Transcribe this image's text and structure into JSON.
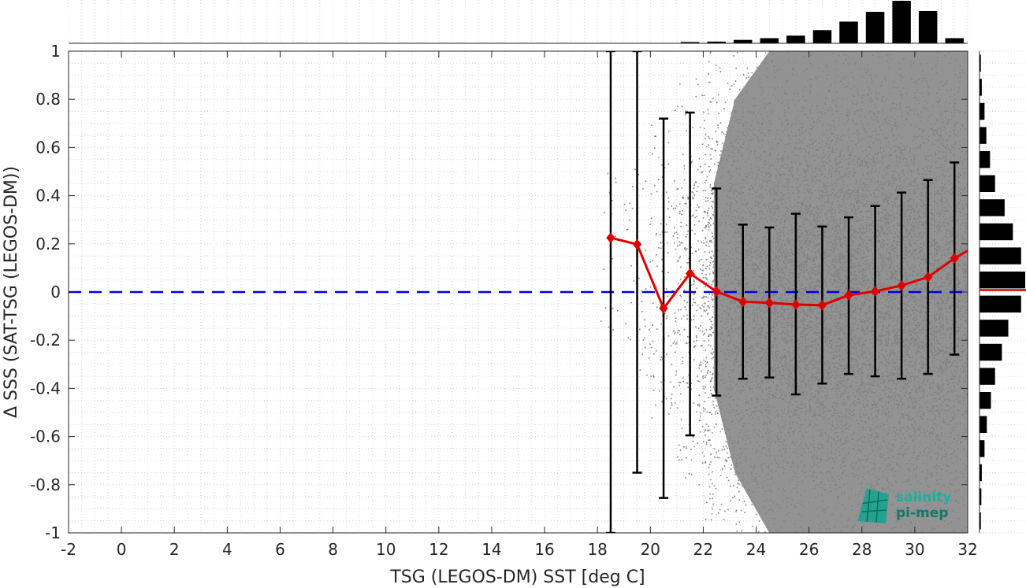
{
  "chart_data": {
    "type": "scatter",
    "title": "",
    "xlabel": "TSG (LEGOS-DM) SST [deg C]",
    "ylabel": "Δ SSS (SAT-TSG (LEGOS-DM))",
    "xlim": [
      -2,
      32
    ],
    "ylim": [
      -1,
      1
    ],
    "x_ticks": [
      "-2",
      "0",
      "2",
      "4",
      "6",
      "8",
      "10",
      "12",
      "14",
      "16",
      "18",
      "20",
      "22",
      "24",
      "26",
      "28",
      "30",
      "32"
    ],
    "y_ticks": [
      "-1",
      "-0.8",
      "-0.6",
      "-0.4",
      "-0.2",
      "0",
      "0.2",
      "0.4",
      "0.6",
      "0.8",
      "1"
    ],
    "grid": "dotted",
    "reference_line": {
      "y": 0,
      "style": "dashed",
      "color": "#0000dd"
    },
    "scatter_cloud": {
      "color": "#808080",
      "description_bins": [
        {
          "x": 18.5,
          "ymin": -0.2,
          "ymax": 0.5,
          "density": 0.02
        },
        {
          "x": 19.5,
          "ymin": -0.4,
          "ymax": 0.6,
          "density": 0.05
        },
        {
          "x": 20.5,
          "ymin": -0.6,
          "ymax": 0.8,
          "density": 0.1
        },
        {
          "x": 21.5,
          "ymin": -0.8,
          "ymax": 0.9,
          "density": 0.2
        },
        {
          "x": 22.5,
          "ymin": -1.0,
          "ymax": 1.0,
          "density": 0.45
        },
        {
          "x": 23.5,
          "ymin": -1.0,
          "ymax": 1.0,
          "density": 0.75
        },
        {
          "x": 24.5,
          "ymin": -1.0,
          "ymax": 1.0,
          "density": 0.9
        },
        {
          "x": 25.5,
          "ymin": -1.0,
          "ymax": 1.0,
          "density": 1.0
        },
        {
          "x": 26.5,
          "ymin": -1.0,
          "ymax": 1.0,
          "density": 1.0
        },
        {
          "x": 27.5,
          "ymin": -1.0,
          "ymax": 1.0,
          "density": 1.0
        },
        {
          "x": 28.5,
          "ymin": -1.0,
          "ymax": 1.0,
          "density": 1.0
        },
        {
          "x": 29.5,
          "ymin": -1.0,
          "ymax": 1.0,
          "density": 1.0
        },
        {
          "x": 30.5,
          "ymin": -1.0,
          "ymax": 1.0,
          "density": 1.0
        },
        {
          "x": 31.5,
          "ymin": -1.0,
          "ymax": 1.0,
          "density": 0.9
        }
      ]
    },
    "series": [
      {
        "color": "#dd0000",
        "x": [
          18.5,
          19.5,
          20.5,
          21.5,
          22.5,
          23.5,
          24.5,
          25.5,
          26.5,
          27.5,
          28.5,
          29.5,
          30.5,
          31.5,
          32
        ],
        "y": [
          0.225,
          0.198,
          -0.068,
          0.077,
          0.002,
          -0.04,
          -0.045,
          -0.052,
          -0.055,
          -0.013,
          0.003,
          0.027,
          0.062,
          0.14,
          0.172
        ],
        "markers": [
          true,
          true,
          true,
          true,
          true,
          true,
          true,
          true,
          true,
          true,
          true,
          true,
          true,
          true,
          false
        ]
      }
    ],
    "error_bars": {
      "color": "#000000",
      "x": [
        18.5,
        19.5,
        20.5,
        21.5,
        22.5,
        23.5,
        24.5,
        25.5,
        26.5,
        27.5,
        28.5,
        29.5,
        30.5,
        31.5
      ],
      "low": [
        -1.0,
        -0.75,
        -0.855,
        -0.595,
        -0.43,
        -0.36,
        -0.355,
        -0.425,
        -0.38,
        -0.34,
        -0.35,
        -0.36,
        -0.34,
        -0.26
      ],
      "high": [
        1.0,
        1.0,
        0.72,
        0.745,
        0.43,
        0.28,
        0.268,
        0.325,
        0.272,
        0.31,
        0.357,
        0.413,
        0.465,
        0.538
      ]
    },
    "top_histogram": {
      "bin_centers": [
        18.5,
        19.5,
        20.5,
        21.5,
        22.5,
        23.5,
        24.5,
        25.5,
        26.5,
        27.5,
        28.5,
        29.5,
        30.5,
        31.5
      ],
      "values": [
        0.0,
        0.0,
        0.0,
        0.03,
        0.04,
        0.08,
        0.12,
        0.18,
        0.31,
        0.51,
        0.74,
        1.0,
        0.76,
        0.12
      ]
    },
    "right_histogram": {
      "bin_centers": [
        -0.95,
        -0.85,
        -0.75,
        -0.65,
        -0.55,
        -0.45,
        -0.35,
        -0.25,
        -0.15,
        -0.05,
        0.05,
        0.15,
        0.25,
        0.35,
        0.45,
        0.55,
        0.65,
        0.75,
        0.85,
        0.95
      ],
      "values": [
        0.03,
        0.04,
        0.05,
        0.11,
        0.16,
        0.25,
        0.34,
        0.49,
        0.63,
        0.91,
        1.0,
        0.91,
        0.73,
        0.55,
        0.34,
        0.23,
        0.15,
        0.11,
        0.05,
        0.03
      ],
      "mean_line": {
        "y": 0.008,
        "color": "#dd0000"
      }
    }
  },
  "logo": {
    "line1": "salinity",
    "line2": "pi-mep",
    "color1": "#13b3a0",
    "color2": "#0e7a6a"
  }
}
